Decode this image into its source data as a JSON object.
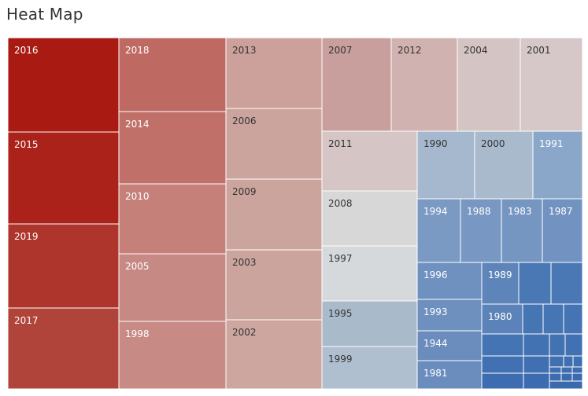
{
  "title": "Heat Map",
  "chart_data": {
    "type": "treemap",
    "color_scale": {
      "high": "#a81a12",
      "mid": "#d8d8d8",
      "low": "#3f73b2"
    },
    "cells": [
      {
        "label": "2016",
        "color": "#a81a12"
      },
      {
        "label": "2015",
        "color": "#aa2219"
      },
      {
        "label": "2019",
        "color": "#ae352b"
      },
      {
        "label": "2017",
        "color": "#b0443a"
      },
      {
        "label": "2018",
        "color": "#be6962"
      },
      {
        "label": "2014",
        "color": "#c07069"
      },
      {
        "label": "2010",
        "color": "#c58079"
      },
      {
        "label": "2005",
        "color": "#c78983"
      },
      {
        "label": "1998",
        "color": "#c88a85"
      },
      {
        "label": "2013",
        "color": "#cca19b"
      },
      {
        "label": "2006",
        "color": "#cca49e"
      },
      {
        "label": "2009",
        "color": "#cca49e"
      },
      {
        "label": "2003",
        "color": "#cca49e"
      },
      {
        "label": "2002",
        "color": "#cda6a0"
      },
      {
        "label": "2007",
        "color": "#c99f9d"
      },
      {
        "label": "2012",
        "color": "#d0b3b0"
      },
      {
        "label": "2004",
        "color": "#d5c4c4"
      },
      {
        "label": "2001",
        "color": "#d6c8c8"
      },
      {
        "label": "2011",
        "color": "#d6c5c5"
      },
      {
        "label": "2008",
        "color": "#d7d7d7"
      },
      {
        "label": "1997",
        "color": "#d6d9dc"
      },
      {
        "label": "1995",
        "color": "#a9bacb"
      },
      {
        "label": "1999",
        "color": "#afbfcf"
      },
      {
        "label": "1990",
        "color": "#a6b8cd"
      },
      {
        "label": "2000",
        "color": "#a9bacd"
      },
      {
        "label": "1991",
        "color": "#8aa6c8"
      },
      {
        "label": "1994",
        "color": "#7a9ac4"
      },
      {
        "label": "1988",
        "color": "#7898c3"
      },
      {
        "label": "1983",
        "color": "#7696c2"
      },
      {
        "label": "1987",
        "color": "#7293c1"
      },
      {
        "label": "1996",
        "color": "#6f91bf"
      },
      {
        "label": "1989",
        "color": "#5d85ba"
      },
      {
        "label": "1993",
        "color": "#6e90be"
      },
      {
        "label": "1980",
        "color": "#5b83b9"
      },
      {
        "label": "1944",
        "color": "#6a8dbd"
      },
      {
        "label": "1981",
        "color": "#6a8dbd"
      },
      {
        "label": "",
        "color": "#4a78b4"
      },
      {
        "label": "",
        "color": "#4a78b4"
      },
      {
        "label": "",
        "color": "#4675b3"
      },
      {
        "label": "",
        "color": "#4675b3"
      },
      {
        "label": "",
        "color": "#4474b3"
      },
      {
        "label": "",
        "color": "#4474b3"
      },
      {
        "label": "",
        "color": "#4272b2"
      },
      {
        "label": "",
        "color": "#4272b2"
      },
      {
        "label": "",
        "color": "#4171b2"
      },
      {
        "label": "",
        "color": "#4171b2"
      },
      {
        "label": "",
        "color": "#4070b1"
      },
      {
        "label": "",
        "color": "#4070b1"
      },
      {
        "label": "",
        "color": "#3f6fb1"
      },
      {
        "label": "",
        "color": "#3f6fb1"
      },
      {
        "label": "",
        "color": "#3e6eb0"
      },
      {
        "label": "",
        "color": "#3e6eb0"
      },
      {
        "label": "",
        "color": "#3d6db0"
      },
      {
        "label": "",
        "color": "#3d6db0"
      },
      {
        "label": "",
        "color": "#3c6caf"
      },
      {
        "label": "",
        "color": "#3c6caf"
      },
      {
        "label": "",
        "color": "#3b6baf"
      },
      {
        "label": "",
        "color": "#3b6baf"
      },
      {
        "label": "",
        "color": "#3a6aae"
      }
    ]
  }
}
